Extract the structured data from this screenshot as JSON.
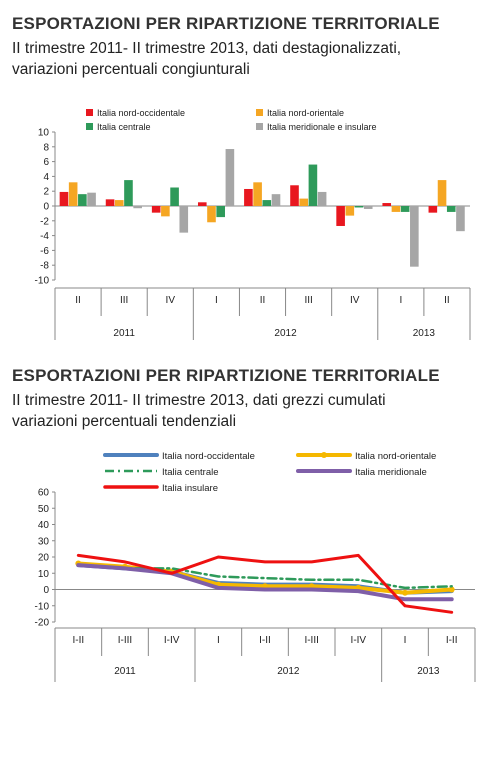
{
  "chart_data": [
    {
      "type": "bar",
      "title": "ESPORTAZIONI PER RIPARTIZIONE TERRITORIALE",
      "subtitle_lines": [
        "II trimestre 2011- II trimestre 2013, dati destagionalizzati,",
        "variazioni percentuali congiunturali"
      ],
      "categories": [
        "II",
        "III",
        "IV",
        "I",
        "II",
        "III",
        "IV",
        "I",
        "II"
      ],
      "year_groups": [
        {
          "label": "2011",
          "start": 0,
          "count": 3
        },
        {
          "label": "2012",
          "start": 3,
          "count": 4
        },
        {
          "label": "2013",
          "start": 7,
          "count": 2
        }
      ],
      "y_ticks": [
        "10",
        "8",
        "6",
        "4",
        "2",
        "0",
        "-2",
        "-4",
        "-6",
        "-8",
        "-10"
      ],
      "ylim": [
        -10,
        10
      ],
      "series": [
        {
          "name": "Italia nord-occidentale",
          "color": "#e8171f",
          "values": [
            1.9,
            0.9,
            -0.9,
            0.5,
            2.3,
            2.8,
            -2.7,
            0.4,
            -0.9
          ]
        },
        {
          "name": "Italia nord-orientale",
          "color": "#f5a623",
          "values": [
            3.2,
            0.8,
            -1.4,
            -2.2,
            3.2,
            1.0,
            -1.3,
            -0.8,
            3.5
          ]
        },
        {
          "name": "Italia centrale",
          "color": "#2e9a5a",
          "values": [
            1.6,
            3.5,
            2.5,
            -1.5,
            0.8,
            5.6,
            -0.2,
            -0.8,
            -0.8
          ]
        },
        {
          "name": "Italia meridionale e insulare",
          "color": "#a6a6a6",
          "values": [
            1.8,
            -0.3,
            -3.6,
            7.7,
            1.6,
            1.9,
            -0.4,
            -8.2,
            -3.4
          ]
        }
      ]
    },
    {
      "type": "line",
      "title": "ESPORTAZIONI PER RIPARTIZIONE TERRITORIALE",
      "subtitle_lines": [
        "II trimestre 2011- II trimestre 2013, dati grezzi cumulati",
        "variazioni percentuali tendenziali"
      ],
      "categories": [
        "I-II",
        "I-III",
        "I-IV",
        "I",
        "I-II",
        "I-III",
        "I-IV",
        "I",
        "I-II"
      ],
      "year_groups": [
        {
          "label": "2011",
          "start": 0,
          "count": 3
        },
        {
          "label": "2012",
          "start": 3,
          "count": 4
        },
        {
          "label": "2013",
          "start": 7,
          "count": 2
        }
      ],
      "y_ticks": [
        "60",
        "50",
        "40",
        "30",
        "20",
        "10",
        "0",
        "-10",
        "-20"
      ],
      "ylim": [
        -20,
        60
      ],
      "series": [
        {
          "name": "Italia nord-occidentale",
          "color": "#4f81bd",
          "style": "solid-thick",
          "values": [
            15,
            13,
            11,
            4,
            3,
            3,
            2,
            -2,
            -1
          ]
        },
        {
          "name": "Italia nord-orientale",
          "color": "#f5b800",
          "style": "solid-thick-marker",
          "values": [
            16,
            14,
            11,
            3,
            2,
            2,
            1,
            -2,
            0
          ]
        },
        {
          "name": "Italia centrale",
          "color": "#2e9a5a",
          "style": "dashdot",
          "values": [
            15,
            13,
            13,
            8,
            7,
            6,
            6,
            1,
            2
          ]
        },
        {
          "name": "Italia meridionale",
          "color": "#7f5fa8",
          "style": "solid-thick",
          "values": [
            15,
            13,
            10,
            1,
            0,
            0,
            -1,
            -6,
            -6
          ]
        },
        {
          "name": "Italia insulare",
          "color": "#ee1111",
          "style": "solid",
          "values": [
            21,
            17,
            10,
            20,
            17,
            17,
            21,
            -10,
            -14
          ]
        }
      ]
    }
  ]
}
